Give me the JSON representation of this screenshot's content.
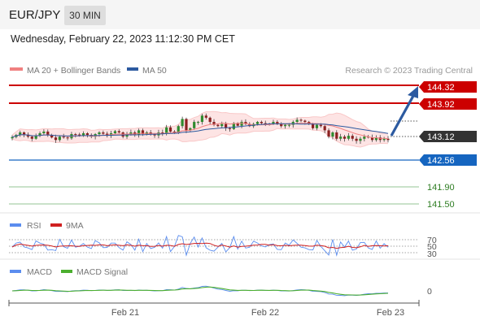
{
  "header": {
    "symbol": "EUR/JPY",
    "timeframe": "30 MIN",
    "datetime": "Wednesday, February 22, 2023 11:12:30 PM CET"
  },
  "legend": {
    "ma20": "MA 20 + Bollinger Bands",
    "ma50": "MA 50",
    "credit": "Research © 2023 Trading Central",
    "rsi": "RSI",
    "rsi_ma": "9MA",
    "macd": "MACD",
    "macd_signal": "MACD Signal"
  },
  "colors": {
    "resistance": "#cc0000",
    "support_pivot": "#1565c0",
    "support": "#2e8b2e",
    "bull": "#2e8b2e",
    "bear": "#8b2020",
    "ma20": "#f08080",
    "ma50": "#2c5aa0",
    "band_fill": "#fde4e4",
    "rsi_line": "#5b8def",
    "rsi_ma_line": "#d02020",
    "macd_line": "#5b8def",
    "signal_line": "#4caf2f",
    "current_tag": "#333333"
  },
  "price_levels": [
    {
      "value": "144.32",
      "kind": "resistance"
    },
    {
      "value": "143.92",
      "kind": "resistance"
    },
    {
      "value": "143.12",
      "kind": "current"
    },
    {
      "value": "142.56",
      "kind": "pivot"
    },
    {
      "value": "141.90",
      "kind": "support"
    },
    {
      "value": "141.50",
      "kind": "support"
    }
  ],
  "x_axis": {
    "labels": [
      "Feb 21",
      "Feb 22",
      "Feb 23"
    ]
  },
  "rsi_axis": {
    "labels": [
      "70",
      "50",
      "30"
    ]
  },
  "macd_axis": {
    "labels": [
      "0"
    ]
  },
  "chart_data": {
    "type": "candlestick",
    "instrument": "EUR/JPY",
    "interval": "30 MIN",
    "x_labels": [
      "Feb 21",
      "Feb 22",
      "Feb 23"
    ],
    "y_levels": [
      144.32,
      143.92,
      143.12,
      142.56,
      141.9,
      141.5
    ],
    "current_price": 143.12,
    "resistance": [
      144.32,
      143.92
    ],
    "pivot": 142.56,
    "support": [
      141.9,
      141.5
    ],
    "forecast_target": 144.32,
    "close_approx": [
      143.09,
      143.14,
      143.2,
      143.15,
      143.1,
      143.05,
      143.12,
      143.18,
      143.22,
      143.14,
      143.08,
      143.02,
      143.1,
      143.08,
      143.06,
      143.16,
      143.15,
      143.13,
      143.18,
      143.14,
      143.1,
      143.16,
      143.2,
      143.17,
      143.12,
      143.18,
      143.23,
      143.2,
      143.1,
      143.16,
      143.2,
      143.14,
      143.25,
      143.16,
      143.2,
      143.15,
      143.13,
      143.2,
      143.18,
      143.32,
      143.22,
      143.2,
      143.35,
      143.52,
      143.25,
      143.3,
      143.45,
      143.45,
      143.6,
      143.55,
      143.45,
      143.38,
      143.35,
      143.4,
      143.3,
      143.28,
      143.42,
      143.36,
      143.45,
      143.4,
      143.35,
      143.4,
      143.45,
      143.42,
      143.38,
      143.4,
      143.45,
      143.4,
      143.35,
      143.38,
      143.38,
      143.45,
      143.5,
      143.48,
      143.45,
      143.4,
      143.3,
      143.38,
      143.35,
      143.25,
      143.1,
      143.2,
      143.05,
      143.1,
      143.05,
      143.12,
      143.05,
      143.0,
      143.05,
      143.1,
      143.08,
      143.02,
      143.08,
      143.02,
      143.05,
      143.02
    ],
    "rsi": {
      "levels": [
        70,
        50,
        30
      ]
    },
    "macd": {
      "zero_label": "0"
    }
  }
}
